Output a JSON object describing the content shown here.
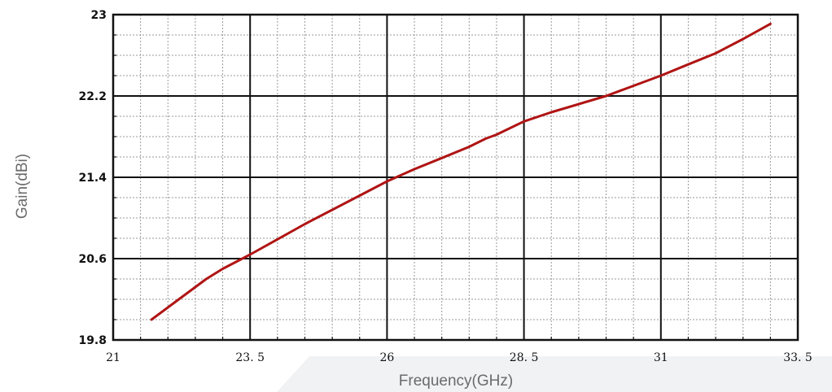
{
  "chart_data": {
    "type": "line",
    "title": "",
    "xlabel": "Frequency(GHz)",
    "ylabel": "Gain(dBi)",
    "xlim": [
      21,
      33.5
    ],
    "ylim": [
      19.8,
      23
    ],
    "x_ticks": [
      "21",
      "23. 5",
      "26",
      "28. 5",
      "31",
      "33. 5"
    ],
    "y_ticks": [
      "19.8",
      "20.6",
      "21.4",
      "22.2",
      "23"
    ],
    "grid": true,
    "series": [
      {
        "color": "#b01414",
        "x": [
          21.7,
          22.2,
          22.7,
          23.0,
          23.5,
          24.0,
          24.5,
          25.0,
          25.5,
          26.0,
          26.5,
          27.0,
          27.5,
          27.8,
          28.0,
          28.5,
          29.0,
          29.5,
          30.0,
          30.5,
          31.0,
          31.5,
          32.0,
          32.5,
          33.0
        ],
        "y": [
          20.0,
          20.2,
          20.4,
          20.5,
          20.64,
          20.79,
          20.94,
          21.08,
          21.22,
          21.36,
          21.48,
          21.59,
          21.7,
          21.78,
          21.82,
          21.95,
          22.04,
          22.12,
          22.2,
          22.3,
          22.4,
          22.51,
          22.62,
          22.76,
          22.91
        ]
      }
    ],
    "colors": {
      "line": "#b01414",
      "grid_major": "#111111",
      "grid_minor": "#9a9a9a",
      "axis_title": "#6b6b6b"
    }
  }
}
